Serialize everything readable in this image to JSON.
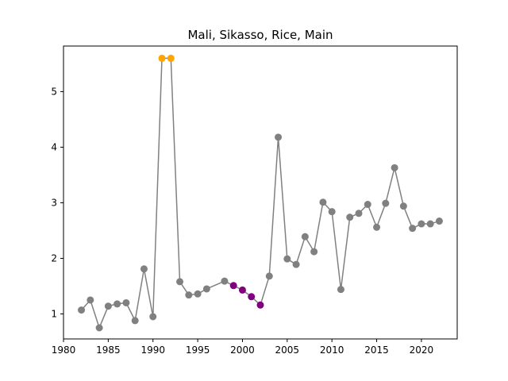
{
  "chart_data": {
    "type": "line",
    "title": "Mali, Sikasso, Rice, Main",
    "xlabel": "",
    "ylabel": "",
    "xlim": [
      1980,
      2024
    ],
    "ylim": [
      0.55,
      5.82
    ],
    "xticks": [
      1980,
      1985,
      1990,
      1995,
      2000,
      2005,
      2010,
      2015,
      2020
    ],
    "yticks": [
      1,
      2,
      3,
      4,
      5
    ],
    "grid": false,
    "legend": "none",
    "line_color": "#808080",
    "point_colors": {
      "normal": "#808080",
      "high": "#ffa500",
      "low": "#800080"
    },
    "series": [
      {
        "points": [
          {
            "x": 1982,
            "y": 1.07,
            "c": "normal"
          },
          {
            "x": 1983,
            "y": 1.25,
            "c": "normal"
          },
          {
            "x": 1984,
            "y": 0.75,
            "c": "normal"
          },
          {
            "x": 1985,
            "y": 1.14,
            "c": "normal"
          },
          {
            "x": 1986,
            "y": 1.18,
            "c": "normal"
          },
          {
            "x": 1987,
            "y": 1.2,
            "c": "normal"
          },
          {
            "x": 1988,
            "y": 0.88,
            "c": "normal"
          },
          {
            "x": 1989,
            "y": 1.81,
            "c": "normal"
          },
          {
            "x": 1990,
            "y": 0.95,
            "c": "normal"
          },
          {
            "x": 1991,
            "y": 5.6,
            "c": "high"
          },
          {
            "x": 1992,
            "y": 5.6,
            "c": "high"
          },
          {
            "x": 1993,
            "y": 1.58,
            "c": "normal"
          },
          {
            "x": 1994,
            "y": 1.34,
            "c": "normal"
          },
          {
            "x": 1995,
            "y": 1.36,
            "c": "normal"
          },
          {
            "x": 1996,
            "y": 1.45,
            "c": "normal"
          },
          {
            "x": 1998,
            "y": 1.59,
            "c": "normal"
          },
          {
            "x": 1999,
            "y": 1.51,
            "c": "low"
          },
          {
            "x": 2000,
            "y": 1.43,
            "c": "low"
          },
          {
            "x": 2001,
            "y": 1.31,
            "c": "low"
          },
          {
            "x": 2002,
            "y": 1.16,
            "c": "low"
          },
          {
            "x": 2003,
            "y": 1.68,
            "c": "normal"
          },
          {
            "x": 2004,
            "y": 4.18,
            "c": "normal"
          },
          {
            "x": 2005,
            "y": 1.99,
            "c": "normal"
          },
          {
            "x": 2006,
            "y": 1.89,
            "c": "normal"
          },
          {
            "x": 2007,
            "y": 2.39,
            "c": "normal"
          },
          {
            "x": 2008,
            "y": 2.12,
            "c": "normal"
          },
          {
            "x": 2009,
            "y": 3.01,
            "c": "normal"
          },
          {
            "x": 2010,
            "y": 2.84,
            "c": "normal"
          },
          {
            "x": 2011,
            "y": 1.44,
            "c": "normal"
          },
          {
            "x": 2012,
            "y": 2.74,
            "c": "normal"
          },
          {
            "x": 2013,
            "y": 2.81,
            "c": "normal"
          },
          {
            "x": 2014,
            "y": 2.97,
            "c": "normal"
          },
          {
            "x": 2015,
            "y": 2.56,
            "c": "normal"
          },
          {
            "x": 2016,
            "y": 2.99,
            "c": "normal"
          },
          {
            "x": 2017,
            "y": 3.63,
            "c": "normal"
          },
          {
            "x": 2018,
            "y": 2.94,
            "c": "normal"
          },
          {
            "x": 2019,
            "y": 2.54,
            "c": "normal"
          },
          {
            "x": 2020,
            "y": 2.62,
            "c": "normal"
          },
          {
            "x": 2021,
            "y": 2.62,
            "c": "normal"
          },
          {
            "x": 2022,
            "y": 2.67,
            "c": "normal"
          }
        ]
      }
    ]
  }
}
